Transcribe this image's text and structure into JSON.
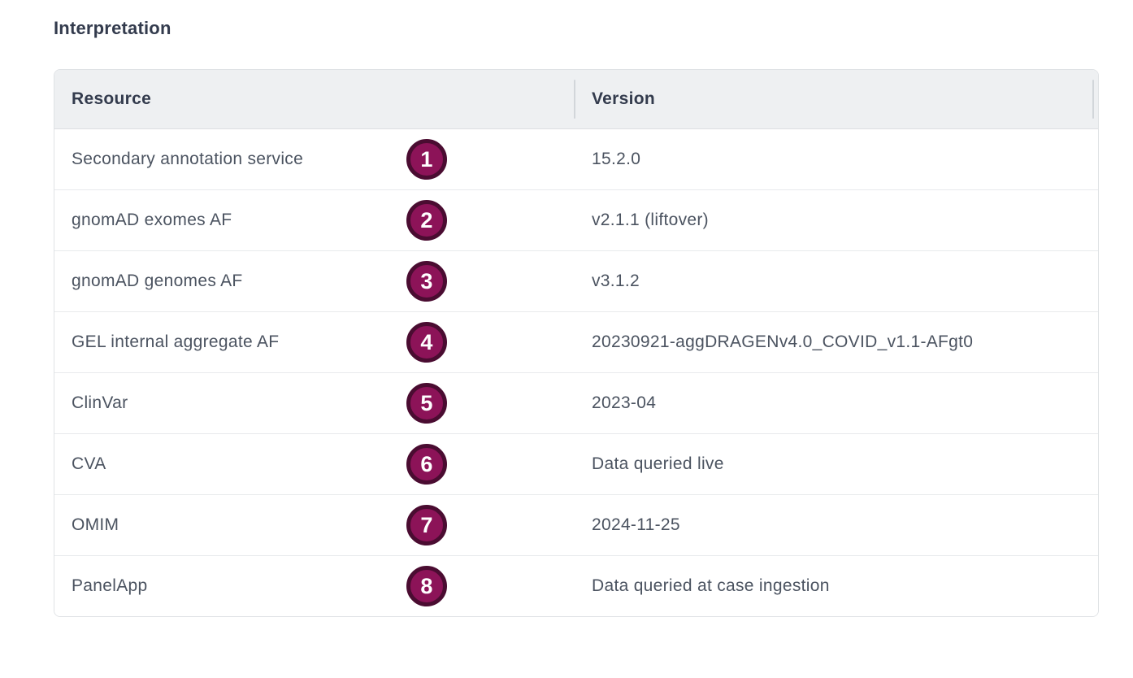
{
  "title": "Interpretation",
  "colors": {
    "badge_fill": "#8c1358",
    "badge_ring": "#4a0c31",
    "header_bg": "#eef0f2",
    "card_border": "#dfe2e5",
    "row_border": "#e8eaec",
    "header_text": "#333b4d",
    "body_text": "#4b5360"
  },
  "table": {
    "columns": [
      "Resource",
      "Version"
    ],
    "rows": [
      {
        "step": "1",
        "resource": "Secondary annotation service",
        "version": "15.2.0"
      },
      {
        "step": "2",
        "resource": "gnomAD exomes AF",
        "version": "v2.1.1 (liftover)"
      },
      {
        "step": "3",
        "resource": "gnomAD genomes AF",
        "version": "v3.1.2"
      },
      {
        "step": "4",
        "resource": "GEL internal aggregate AF",
        "version": "20230921-aggDRAGENv4.0_COVID_v1.1-AFgt0"
      },
      {
        "step": "5",
        "resource": "ClinVar",
        "version": "2023-04"
      },
      {
        "step": "6",
        "resource": "CVA",
        "version": "Data queried live"
      },
      {
        "step": "7",
        "resource": "OMIM",
        "version": "2024-11-25"
      },
      {
        "step": "8",
        "resource": "PanelApp",
        "version": "Data queried at case ingestion"
      }
    ]
  }
}
